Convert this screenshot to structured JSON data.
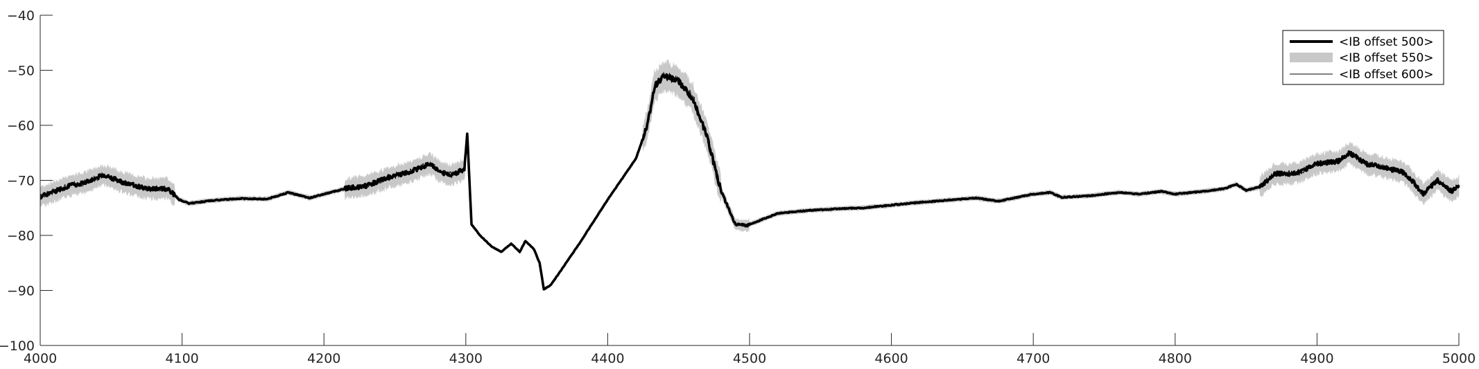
{
  "chart_data": {
    "type": "line",
    "title": "",
    "xlabel": "",
    "ylabel": "",
    "xlim": [
      4000,
      5000
    ],
    "ylim": [
      -100,
      -40
    ],
    "x_ticks": [
      4000,
      4100,
      4200,
      4300,
      4400,
      4500,
      4600,
      4700,
      4800,
      4900,
      5000
    ],
    "y_ticks": [
      -40,
      -50,
      -60,
      -70,
      -80,
      -90,
      -100
    ],
    "x_tick_labels": [
      "4000",
      "4100",
      "4200",
      "4300",
      "4400",
      "4500",
      "4600",
      "4700",
      "4800",
      "4900",
      "5000"
    ],
    "y_tick_labels": [
      "−40",
      "−50",
      "−60",
      "−70",
      "−80",
      "−90",
      "−100"
    ],
    "grid": false,
    "legend_position": "top-right",
    "series": [
      {
        "name": "<IB offset 500>",
        "style": "thick-line",
        "color": "#000000",
        "x": [
          4000,
          4010,
          4020,
          4030,
          4045,
          4060,
          4075,
          4090,
          4098,
          4105,
          4120,
          4140,
          4160,
          4175,
          4190,
          4200,
          4215,
          4230,
          4245,
          4260,
          4275,
          4282,
          4290,
          4299,
          4301,
          4304,
          4310,
          4318,
          4325,
          4332,
          4338,
          4342,
          4348,
          4352,
          4355,
          4360,
          4380,
          4400,
          4420,
          4428,
          4433,
          4440,
          4450,
          4460,
          4470,
          4480,
          4490,
          4498,
          4505,
          4520,
          4540,
          4560,
          4580,
          4600,
          4620,
          4640,
          4660,
          4675,
          4685,
          4700,
          4712,
          4720,
          4740,
          4760,
          4775,
          4790,
          4800,
          4820,
          4835,
          4843,
          4850,
          4860,
          4870,
          4885,
          4900,
          4915,
          4923,
          4935,
          4945,
          4960,
          4965,
          4975,
          4985,
          4995,
          5000
        ],
        "y": [
          -73,
          -72,
          -71,
          -70.5,
          -69,
          -70.5,
          -71.5,
          -71.5,
          -73.5,
          -74.2,
          -73.7,
          -73.3,
          -73.4,
          -72.2,
          -73.2,
          -72.5,
          -71.5,
          -71,
          -69.5,
          -68.5,
          -67,
          -68.5,
          -69,
          -68,
          -61.5,
          -78,
          -80,
          -82,
          -83,
          -81.5,
          -83,
          -81,
          -82.5,
          -85,
          -89.8,
          -89,
          -81.5,
          -73.5,
          -66,
          -60,
          -53,
          -51,
          -52,
          -55,
          -62,
          -72,
          -78,
          -78.2,
          -77.5,
          -76,
          -75.5,
          -75.2,
          -75,
          -74.5,
          -74,
          -73.6,
          -73.2,
          -73.8,
          -73.3,
          -72.5,
          -72.2,
          -73.1,
          -72.8,
          -72.2,
          -72.5,
          -72,
          -72.5,
          -72,
          -71.5,
          -70.7,
          -71.8,
          -71.2,
          -68.8,
          -68.8,
          -67,
          -66.5,
          -65,
          -67,
          -67.5,
          -68.5,
          -69.5,
          -72.5,
          -70,
          -72,
          -71
        ]
      },
      {
        "name": "<IB offset 550>",
        "style": "grey-band",
        "color": "#c8c8c8"
      },
      {
        "name": "<IB offset 600>",
        "style": "thin-line",
        "color": "#000000"
      }
    ]
  }
}
